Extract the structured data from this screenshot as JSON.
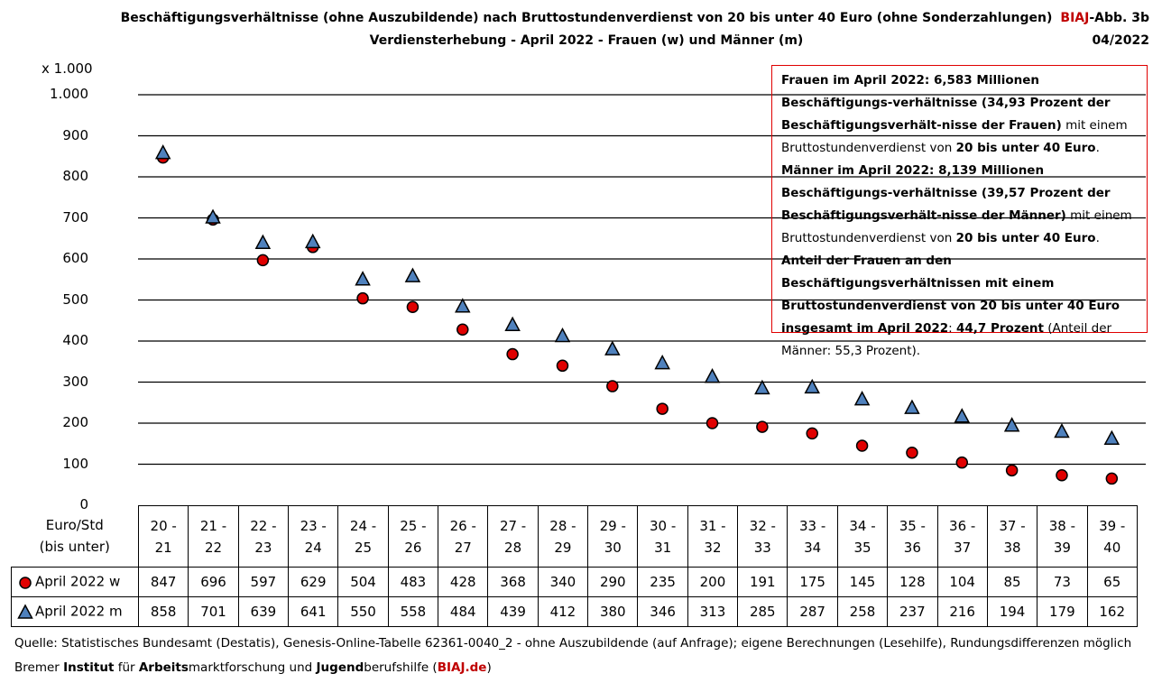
{
  "chart_data": {
    "type": "scatter",
    "title": [
      "Beschäftigungsverhältnisse (ohne Auszubildende) nach Bruttostundenverdienst von 20 bis unter 40 Euro (ohne Sonderzahlungen)",
      "Verdiensterhebung - April 2022 - Frauen (w) und Männer (m)"
    ],
    "badge": [
      [
        "BIAJ",
        "-Abb. 3b"
      ],
      "04/2022"
    ],
    "y_unit": "x 1.000",
    "x_label": "Euro/Std (bis unter)",
    "categories": [
      "20 - 21",
      "21 - 22",
      "22 - 23",
      "23 - 24",
      "24 - 25",
      "25 - 26",
      "26 - 27",
      "27 - 28",
      "28 - 29",
      "29 - 30",
      "30 - 31",
      "31 - 32",
      "32 - 33",
      "33 - 34",
      "34 - 35",
      "35 - 36",
      "36 - 37",
      "37 - 38",
      "38 - 39",
      "39 - 40"
    ],
    "series": [
      {
        "name": "April 2022 w",
        "color": "#e00000",
        "marker": "circle",
        "values": [
          847,
          696,
          597,
          629,
          504,
          483,
          428,
          368,
          340,
          290,
          235,
          200,
          191,
          175,
          145,
          128,
          104,
          85,
          73,
          65
        ]
      },
      {
        "name": "April 2022 m",
        "color": "#4f81bd",
        "marker": "triangle",
        "values": [
          858,
          701,
          639,
          641,
          550,
          558,
          484,
          439,
          412,
          380,
          346,
          313,
          285,
          287,
          258,
          237,
          216,
          194,
          179,
          162
        ]
      }
    ],
    "ylim": [
      0,
      1000
    ],
    "yticks": [
      0,
      100,
      200,
      300,
      400,
      500,
      600,
      700,
      800,
      900,
      {
        "value": 1000,
        "label": "1.000"
      }
    ],
    "grid": true,
    "annotation": [
      [
        "Frauen im April 2022:  6,583 Millionen  Beschäftigungs-verhältnisse (34,93 Prozent der Beschäftigungsverhält-nisse der Frauen)",
        " mit einem Bruttostundenverdienst von ",
        "20 bis unter 40 Euro",
        "."
      ],
      [
        "Männer im April 2022:  8,139  Millionen Beschäftigungs-verhältnisse (39,57 Prozent der Beschäftigungsverhält-nisse der Männer)",
        " mit einem Bruttostundenverdienst von ",
        "20 bis unter 40 Euro",
        "."
      ],
      [
        "Anteil der Frauen an den Beschäftigungsverhältnissen mit einem Bruttostundenverdienst von 20 bis unter 40 Euro insgesamt im April 2022",
        ": ",
        "44,7 Prozent",
        " (Anteil der Männer: 55,3 Prozent)."
      ]
    ],
    "footer": [
      [
        "Quelle: Statistisches Bundesamt (Destatis), Genesis-Online-Tabelle 62361-0040_2 - ohne Auszubildende (auf Anfrage); eigene Berechnungen (Lesehilfe), Rundungsdifferenzen möglich"
      ],
      [
        "Bremer ",
        "Institut",
        " für ",
        "Arbeits",
        "marktforschung und ",
        "Jugend",
        "berufshilfe (",
        "BIAJ.de",
        ")"
      ]
    ]
  }
}
